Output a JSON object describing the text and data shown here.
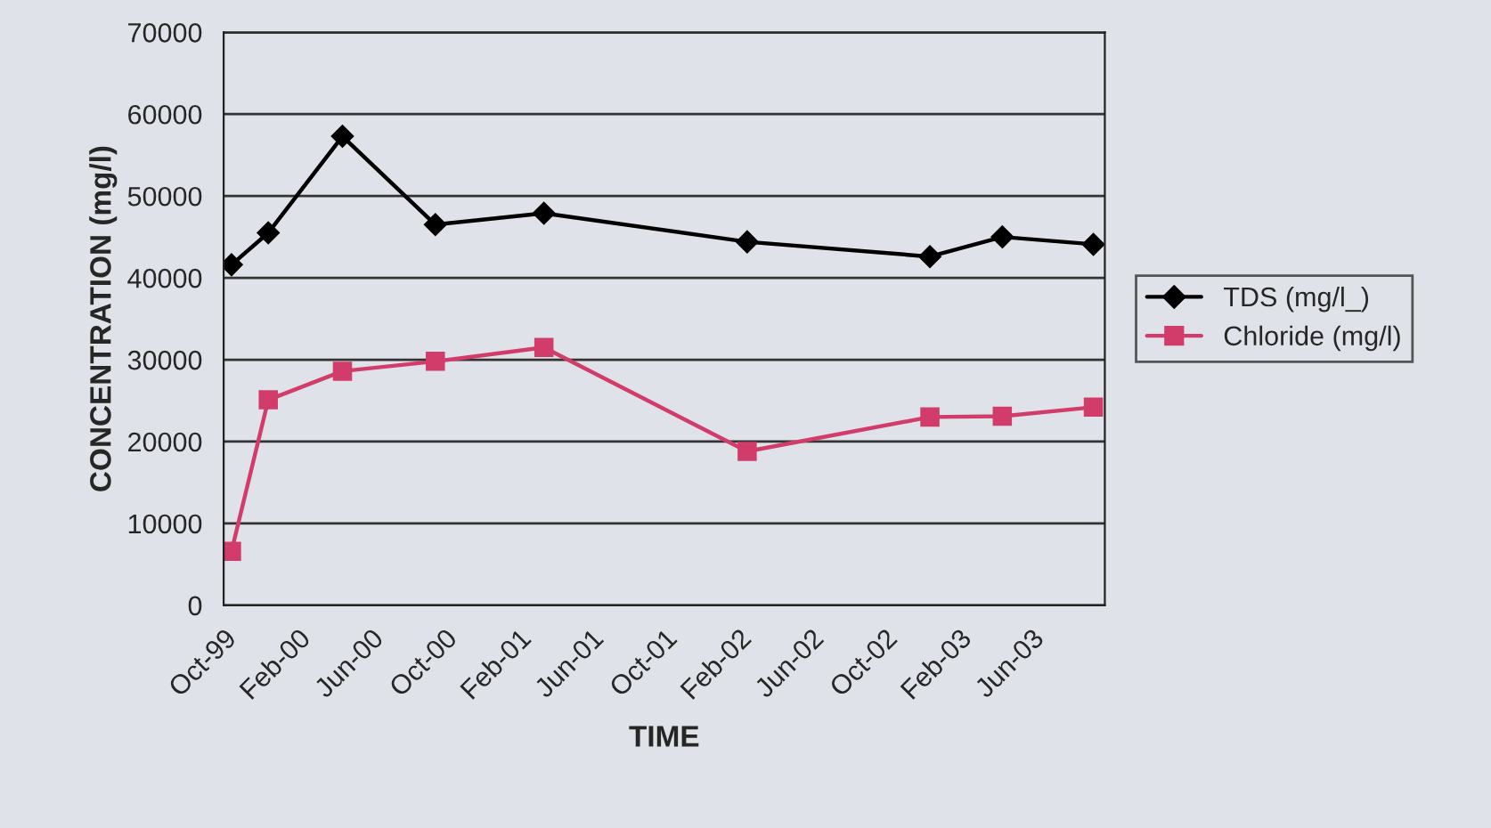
{
  "chart_data": {
    "type": "line",
    "xlabel": "TIME",
    "ylabel": "CONCENTRATION (mg/l)",
    "x": [
      "1999-10-14",
      "1999-12-14",
      "2000-04-15",
      "2000-09-16",
      "2001-03-15",
      "2002-02-15",
      "2002-12-15",
      "2003-04-14",
      "2003-09-12"
    ],
    "series": [
      {
        "name": "TDS (mg/l_)",
        "color": "#000000",
        "marker": "diamond",
        "values": [
          41600,
          45500,
          57300,
          46500,
          47900,
          44400,
          42600,
          45000,
          44100
        ]
      },
      {
        "name": "Chloride (mg/l)",
        "color": "#d23c6a",
        "marker": "square",
        "values": [
          6600,
          25100,
          28600,
          29800,
          31500,
          18800,
          23000,
          23100,
          24200
        ]
      }
    ],
    "xlim": [
      "1999-10-01",
      "2003-10-01"
    ],
    "xticks": [
      {
        "value": "1999-10-01",
        "label": "Oct-99"
      },
      {
        "value": "2000-02-01",
        "label": "Feb-00"
      },
      {
        "value": "2000-06-01",
        "label": "Jun-00"
      },
      {
        "value": "2000-10-01",
        "label": "Oct-00"
      },
      {
        "value": "2001-02-01",
        "label": "Feb-01"
      },
      {
        "value": "2001-06-01",
        "label": "Jun-01"
      },
      {
        "value": "2001-10-01",
        "label": "Oct-01"
      },
      {
        "value": "2002-02-01",
        "label": "Feb-02"
      },
      {
        "value": "2002-06-01",
        "label": "Jun-02"
      },
      {
        "value": "2002-10-01",
        "label": "Oct-02"
      },
      {
        "value": "2003-02-01",
        "label": "Feb-03"
      },
      {
        "value": "2003-06-01",
        "label": "Jun-03"
      },
      {
        "value": "2003-10-01",
        "label": null
      }
    ],
    "ylim": [
      0,
      70000
    ],
    "yticks": [
      0,
      10000,
      20000,
      30000,
      40000,
      50000,
      60000,
      70000
    ],
    "grid": "y",
    "legend": "right",
    "line_style": "solid"
  }
}
